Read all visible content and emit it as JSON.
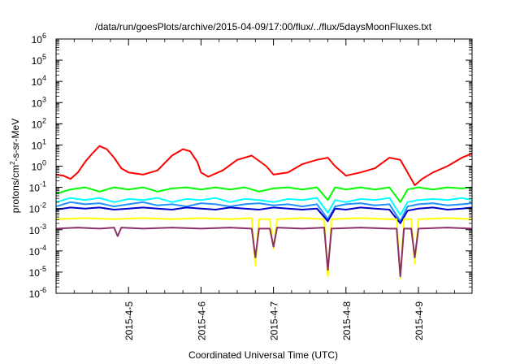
{
  "chart_data": {
    "type": "line",
    "title": "/data/run/goesPlots/archive/2015-04-09/17:00/flux/../flux/5daysMoonFluxes.txt",
    "xlabel": "Coordinated Universal Time (UTC)",
    "ylabel_parts": {
      "pre": "protons/cm",
      "sup": "2",
      "post": "-s-sr-MeV"
    },
    "yscale": "log",
    "ylim_exp": [
      -6,
      6
    ],
    "y_tick_exponents": [
      "-6",
      "-5",
      "-4",
      "-3",
      "-2",
      "-1",
      "0",
      "1",
      "2",
      "3",
      "4",
      "5",
      "6"
    ],
    "xlim_days": [
      4.0,
      9.74
    ],
    "x_tick_labels": [
      "2015-4-5",
      "2015-4-6",
      "2015-4-7",
      "2015-4-8",
      "2015-4-9"
    ],
    "x_tick_days": [
      5,
      6,
      7,
      8,
      9
    ],
    "legend": "none",
    "grid": false,
    "series": [
      {
        "color": "#ff0000",
        "points": [
          [
            4.0,
            -0.4
          ],
          [
            4.1,
            -0.45
          ],
          [
            4.2,
            -0.6
          ],
          [
            4.3,
            -0.3
          ],
          [
            4.4,
            0.2
          ],
          [
            4.5,
            0.6
          ],
          [
            4.6,
            0.95
          ],
          [
            4.7,
            0.8
          ],
          [
            4.8,
            0.4
          ],
          [
            4.9,
            -0.1
          ],
          [
            5.0,
            -0.3
          ],
          [
            5.2,
            -0.4
          ],
          [
            5.4,
            -0.2
          ],
          [
            5.6,
            0.5
          ],
          [
            5.75,
            0.8
          ],
          [
            5.85,
            0.7
          ],
          [
            5.95,
            0.2
          ],
          [
            6.0,
            -0.3
          ],
          [
            6.1,
            -0.5
          ],
          [
            6.3,
            -0.2
          ],
          [
            6.5,
            0.3
          ],
          [
            6.7,
            0.5
          ],
          [
            6.9,
            0.0
          ],
          [
            7.0,
            -0.4
          ],
          [
            7.2,
            -0.3
          ],
          [
            7.4,
            0.1
          ],
          [
            7.6,
            0.3
          ],
          [
            7.75,
            0.4
          ],
          [
            7.85,
            0.0
          ],
          [
            8.0,
            -0.45
          ],
          [
            8.2,
            -0.3
          ],
          [
            8.4,
            -0.1
          ],
          [
            8.6,
            0.4
          ],
          [
            8.75,
            0.3
          ],
          [
            8.85,
            -0.3
          ],
          [
            8.95,
            -0.9
          ],
          [
            9.05,
            -0.6
          ],
          [
            9.2,
            -0.3
          ],
          [
            9.4,
            0.0
          ],
          [
            9.6,
            0.4
          ],
          [
            9.74,
            0.6
          ]
        ]
      },
      {
        "color": "#00ff00",
        "points": [
          [
            4.0,
            -1.3
          ],
          [
            4.2,
            -1.1
          ],
          [
            4.4,
            -1.0
          ],
          [
            4.6,
            -1.2
          ],
          [
            4.8,
            -1.0
          ],
          [
            5.0,
            -1.1
          ],
          [
            5.2,
            -1.0
          ],
          [
            5.4,
            -1.2
          ],
          [
            5.6,
            -1.05
          ],
          [
            5.8,
            -1.0
          ],
          [
            6.0,
            -1.1
          ],
          [
            6.2,
            -1.0
          ],
          [
            6.4,
            -1.1
          ],
          [
            6.6,
            -1.0
          ],
          [
            6.8,
            -1.2
          ],
          [
            7.0,
            -1.05
          ],
          [
            7.2,
            -1.0
          ],
          [
            7.4,
            -1.1
          ],
          [
            7.6,
            -1.0
          ],
          [
            7.75,
            -1.6
          ],
          [
            7.85,
            -1.0
          ],
          [
            8.0,
            -1.1
          ],
          [
            8.2,
            -1.0
          ],
          [
            8.4,
            -1.1
          ],
          [
            8.6,
            -1.0
          ],
          [
            8.75,
            -1.7
          ],
          [
            8.85,
            -1.1
          ],
          [
            9.0,
            -1.0
          ],
          [
            9.2,
            -1.1
          ],
          [
            9.4,
            -1.0
          ],
          [
            9.6,
            -1.05
          ],
          [
            9.74,
            -1.0
          ]
        ]
      },
      {
        "color": "#00ffff",
        "points": [
          [
            4.0,
            -1.7
          ],
          [
            4.2,
            -1.5
          ],
          [
            4.4,
            -1.6
          ],
          [
            4.6,
            -1.5
          ],
          [
            4.8,
            -1.7
          ],
          [
            5.0,
            -1.55
          ],
          [
            5.2,
            -1.6
          ],
          [
            5.4,
            -1.5
          ],
          [
            5.6,
            -1.7
          ],
          [
            5.8,
            -1.55
          ],
          [
            6.0,
            -1.6
          ],
          [
            6.2,
            -1.5
          ],
          [
            6.4,
            -1.7
          ],
          [
            6.6,
            -1.55
          ],
          [
            6.8,
            -1.6
          ],
          [
            7.0,
            -1.7
          ],
          [
            7.2,
            -1.55
          ],
          [
            7.4,
            -1.6
          ],
          [
            7.6,
            -1.5
          ],
          [
            7.75,
            -2.2
          ],
          [
            7.85,
            -1.6
          ],
          [
            8.0,
            -1.7
          ],
          [
            8.2,
            -1.55
          ],
          [
            8.4,
            -1.6
          ],
          [
            8.6,
            -1.5
          ],
          [
            8.75,
            -2.3
          ],
          [
            8.85,
            -1.7
          ],
          [
            9.0,
            -1.6
          ],
          [
            9.2,
            -1.55
          ],
          [
            9.4,
            -1.6
          ],
          [
            9.6,
            -1.5
          ],
          [
            9.74,
            -1.6
          ]
        ]
      },
      {
        "color": "#1e90ff",
        "points": [
          [
            4.0,
            -1.9
          ],
          [
            4.2,
            -1.7
          ],
          [
            4.4,
            -1.8
          ],
          [
            4.6,
            -1.75
          ],
          [
            4.8,
            -1.9
          ],
          [
            5.0,
            -1.8
          ],
          [
            5.2,
            -1.7
          ],
          [
            5.4,
            -1.85
          ],
          [
            5.6,
            -1.8
          ],
          [
            5.8,
            -1.9
          ],
          [
            6.0,
            -1.75
          ],
          [
            6.2,
            -1.8
          ],
          [
            6.4,
            -1.9
          ],
          [
            6.6,
            -1.8
          ],
          [
            6.8,
            -1.75
          ],
          [
            7.0,
            -1.85
          ],
          [
            7.2,
            -1.8
          ],
          [
            7.4,
            -1.9
          ],
          [
            7.6,
            -1.8
          ],
          [
            7.75,
            -2.5
          ],
          [
            7.85,
            -1.9
          ],
          [
            8.0,
            -1.8
          ],
          [
            8.2,
            -1.75
          ],
          [
            8.4,
            -1.85
          ],
          [
            8.6,
            -1.8
          ],
          [
            8.75,
            -2.6
          ],
          [
            8.85,
            -1.9
          ],
          [
            9.0,
            -1.8
          ],
          [
            9.2,
            -1.75
          ],
          [
            9.4,
            -1.85
          ],
          [
            9.6,
            -1.8
          ],
          [
            9.74,
            -1.75
          ]
        ]
      },
      {
        "color": "#0000cd",
        "points": [
          [
            4.0,
            -2.05
          ],
          [
            4.2,
            -1.95
          ],
          [
            4.4,
            -2.0
          ],
          [
            4.6,
            -1.95
          ],
          [
            4.8,
            -2.05
          ],
          [
            5.0,
            -2.0
          ],
          [
            5.2,
            -1.95
          ],
          [
            5.4,
            -2.0
          ],
          [
            5.6,
            -2.05
          ],
          [
            5.8,
            -1.95
          ],
          [
            6.0,
            -2.0
          ],
          [
            6.2,
            -2.05
          ],
          [
            6.4,
            -1.95
          ],
          [
            6.6,
            -2.0
          ],
          [
            6.8,
            -2.05
          ],
          [
            7.0,
            -1.95
          ],
          [
            7.2,
            -2.0
          ],
          [
            7.4,
            -2.05
          ],
          [
            7.6,
            -2.0
          ],
          [
            7.75,
            -2.6
          ],
          [
            7.85,
            -2.0
          ],
          [
            8.0,
            -2.05
          ],
          [
            8.2,
            -1.95
          ],
          [
            8.4,
            -2.0
          ],
          [
            8.6,
            -2.05
          ],
          [
            8.75,
            -2.7
          ],
          [
            8.85,
            -2.1
          ],
          [
            9.0,
            -2.0
          ],
          [
            9.2,
            -1.95
          ],
          [
            9.4,
            -2.05
          ],
          [
            9.6,
            -2.0
          ],
          [
            9.74,
            -1.95
          ]
        ]
      },
      {
        "color": "#ffff00",
        "points": [
          [
            4.0,
            -2.5
          ],
          [
            4.4,
            -2.45
          ],
          [
            4.8,
            -2.5
          ],
          [
            5.2,
            -2.45
          ],
          [
            5.6,
            -2.5
          ],
          [
            6.0,
            -2.45
          ],
          [
            6.4,
            -2.5
          ],
          [
            6.7,
            -2.45
          ],
          [
            6.75,
            -4.7
          ],
          [
            6.8,
            -2.5
          ],
          [
            6.95,
            -2.5
          ],
          [
            7.0,
            -3.9
          ],
          [
            7.05,
            -2.5
          ],
          [
            7.4,
            -2.45
          ],
          [
            7.7,
            -2.5
          ],
          [
            7.75,
            -5.2
          ],
          [
            7.8,
            -2.5
          ],
          [
            8.2,
            -2.45
          ],
          [
            8.6,
            -2.5
          ],
          [
            8.7,
            -2.5
          ],
          [
            8.75,
            -5.3
          ],
          [
            8.8,
            -2.5
          ],
          [
            8.9,
            -2.5
          ],
          [
            8.95,
            -4.6
          ],
          [
            9.0,
            -2.5
          ],
          [
            9.4,
            -2.45
          ],
          [
            9.74,
            -2.5
          ]
        ]
      },
      {
        "color": "#8b2f6b",
        "points": [
          [
            4.0,
            -2.95
          ],
          [
            4.3,
            -2.9
          ],
          [
            4.6,
            -2.95
          ],
          [
            4.8,
            -2.9
          ],
          [
            4.85,
            -3.3
          ],
          [
            4.9,
            -2.9
          ],
          [
            5.2,
            -2.95
          ],
          [
            5.6,
            -2.9
          ],
          [
            6.0,
            -2.95
          ],
          [
            6.4,
            -2.9
          ],
          [
            6.7,
            -2.95
          ],
          [
            6.75,
            -4.3
          ],
          [
            6.8,
            -2.95
          ],
          [
            6.95,
            -2.95
          ],
          [
            7.0,
            -3.8
          ],
          [
            7.05,
            -2.9
          ],
          [
            7.4,
            -2.95
          ],
          [
            7.7,
            -2.9
          ],
          [
            7.75,
            -4.9
          ],
          [
            7.8,
            -2.95
          ],
          [
            8.2,
            -2.9
          ],
          [
            8.6,
            -2.95
          ],
          [
            8.7,
            -2.95
          ],
          [
            8.75,
            -5.2
          ],
          [
            8.8,
            -2.95
          ],
          [
            8.9,
            -2.95
          ],
          [
            8.95,
            -4.3
          ],
          [
            9.0,
            -2.95
          ],
          [
            9.4,
            -2.9
          ],
          [
            9.74,
            -2.95
          ]
        ]
      }
    ]
  }
}
